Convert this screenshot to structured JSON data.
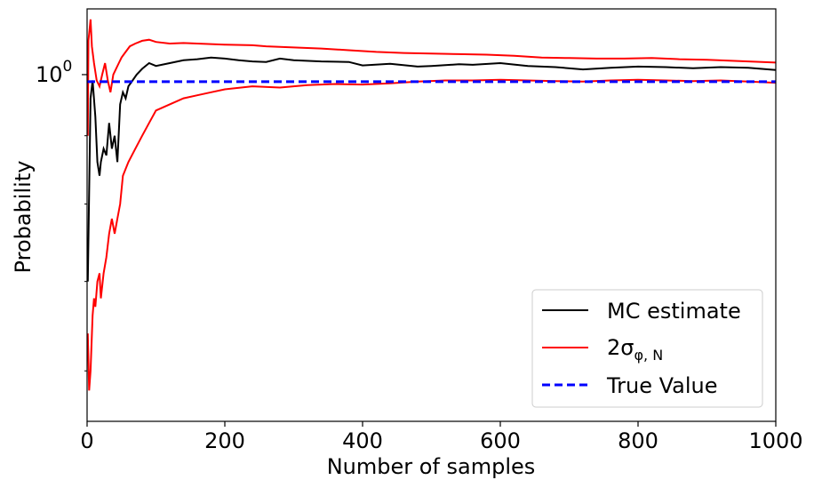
{
  "chart_data": {
    "type": "line",
    "title": "",
    "xlabel": "Number of samples",
    "ylabel": "Probability",
    "xlim": [
      0,
      1000
    ],
    "ylim_log": [
      0.55,
      1.12
    ],
    "yscale": "log",
    "grid": false,
    "legend_placement": "lower-right",
    "x_ticks": [
      {
        "value": 0,
        "label": "0"
      },
      {
        "value": 200,
        "label": "200"
      },
      {
        "value": 400,
        "label": "400"
      },
      {
        "value": 600,
        "label": "600"
      },
      {
        "value": 800,
        "label": "800"
      },
      {
        "value": 1000,
        "label": "1000"
      }
    ],
    "y_major_tick": {
      "value": 1.0,
      "base": "10",
      "exponent": "0"
    },
    "y_minor_ticks": [
      0.6,
      0.7,
      0.8,
      0.9
    ],
    "series": [
      {
        "name": "MC estimate",
        "color": "#000000",
        "dash": "solid",
        "points": [
          [
            1,
            0.7
          ],
          [
            5,
            0.96
          ],
          [
            8,
            0.99
          ],
          [
            12,
            0.93
          ],
          [
            15,
            0.86
          ],
          [
            18,
            0.84
          ],
          [
            20,
            0.86
          ],
          [
            24,
            0.88
          ],
          [
            28,
            0.87
          ],
          [
            32,
            0.92
          ],
          [
            36,
            0.88
          ],
          [
            40,
            0.9
          ],
          [
            44,
            0.86
          ],
          [
            48,
            0.95
          ],
          [
            52,
            0.97
          ],
          [
            56,
            0.96
          ],
          [
            60,
            0.98
          ],
          [
            66,
            0.99
          ],
          [
            72,
            1.0
          ],
          [
            80,
            1.01
          ],
          [
            90,
            1.02
          ],
          [
            100,
            1.015
          ],
          [
            120,
            1.02
          ],
          [
            140,
            1.025
          ],
          [
            160,
            1.027
          ],
          [
            180,
            1.03
          ],
          [
            200,
            1.028
          ],
          [
            220,
            1.025
          ],
          [
            240,
            1.023
          ],
          [
            260,
            1.022
          ],
          [
            280,
            1.028
          ],
          [
            300,
            1.025
          ],
          [
            340,
            1.023
          ],
          [
            380,
            1.022
          ],
          [
            400,
            1.016
          ],
          [
            440,
            1.019
          ],
          [
            480,
            1.014
          ],
          [
            500,
            1.015
          ],
          [
            540,
            1.018
          ],
          [
            560,
            1.017
          ],
          [
            600,
            1.02
          ],
          [
            640,
            1.015
          ],
          [
            680,
            1.013
          ],
          [
            720,
            1.009
          ],
          [
            760,
            1.012
          ],
          [
            800,
            1.014
          ],
          [
            840,
            1.013
          ],
          [
            880,
            1.011
          ],
          [
            920,
            1.013
          ],
          [
            960,
            1.012
          ],
          [
            1000,
            1.008
          ]
        ]
      },
      {
        "name": "2σ_{φ,N}",
        "name_base": "2σ",
        "name_sub": "φ, N",
        "color": "#ff0000",
        "dash": "solid",
        "upper": [
          [
            1,
            0.9
          ],
          [
            2,
            1.06
          ],
          [
            5,
            1.1
          ],
          [
            7,
            1.05
          ],
          [
            10,
            1.02
          ],
          [
            14,
            0.99
          ],
          [
            18,
            0.98
          ],
          [
            22,
            1.0
          ],
          [
            26,
            1.02
          ],
          [
            30,
            0.99
          ],
          [
            34,
            0.97
          ],
          [
            38,
            1.0
          ],
          [
            42,
            1.01
          ],
          [
            46,
            1.02
          ],
          [
            50,
            1.03
          ],
          [
            56,
            1.04
          ],
          [
            62,
            1.05
          ],
          [
            70,
            1.055
          ],
          [
            80,
            1.06
          ],
          [
            90,
            1.062
          ],
          [
            100,
            1.058
          ],
          [
            120,
            1.055
          ],
          [
            140,
            1.056
          ],
          [
            160,
            1.055
          ],
          [
            180,
            1.054
          ],
          [
            200,
            1.053
          ],
          [
            240,
            1.052
          ],
          [
            260,
            1.05
          ],
          [
            300,
            1.048
          ],
          [
            340,
            1.046
          ],
          [
            380,
            1.043
          ],
          [
            420,
            1.04
          ],
          [
            460,
            1.038
          ],
          [
            500,
            1.037
          ],
          [
            540,
            1.036
          ],
          [
            580,
            1.035
          ],
          [
            620,
            1.033
          ],
          [
            660,
            1.03
          ],
          [
            700,
            1.029
          ],
          [
            740,
            1.028
          ],
          [
            780,
            1.028
          ],
          [
            820,
            1.029
          ],
          [
            860,
            1.027
          ],
          [
            900,
            1.026
          ],
          [
            940,
            1.024
          ],
          [
            980,
            1.022
          ],
          [
            1000,
            1.021
          ]
        ],
        "lower": [
          [
            1,
            0.64
          ],
          [
            3,
            0.58
          ],
          [
            5,
            0.6
          ],
          [
            8,
            0.66
          ],
          [
            10,
            0.68
          ],
          [
            12,
            0.67
          ],
          [
            15,
            0.7
          ],
          [
            18,
            0.71
          ],
          [
            20,
            0.68
          ],
          [
            24,
            0.71
          ],
          [
            28,
            0.73
          ],
          [
            32,
            0.76
          ],
          [
            36,
            0.78
          ],
          [
            40,
            0.76
          ],
          [
            44,
            0.78
          ],
          [
            48,
            0.8
          ],
          [
            52,
            0.84
          ],
          [
            56,
            0.85
          ],
          [
            60,
            0.86
          ],
          [
            70,
            0.88
          ],
          [
            80,
            0.9
          ],
          [
            90,
            0.92
          ],
          [
            100,
            0.94
          ],
          [
            120,
            0.95
          ],
          [
            140,
            0.96
          ],
          [
            160,
            0.965
          ],
          [
            180,
            0.97
          ],
          [
            200,
            0.975
          ],
          [
            240,
            0.98
          ],
          [
            280,
            0.978
          ],
          [
            320,
            0.982
          ],
          [
            360,
            0.984
          ],
          [
            400,
            0.983
          ],
          [
            440,
            0.985
          ],
          [
            480,
            0.988
          ],
          [
            520,
            0.99
          ],
          [
            560,
            0.99
          ],
          [
            600,
            0.991
          ],
          [
            640,
            0.99
          ],
          [
            680,
            0.989
          ],
          [
            720,
            0.988
          ],
          [
            760,
            0.99
          ],
          [
            800,
            0.991
          ],
          [
            840,
            0.99
          ],
          [
            880,
            0.989
          ],
          [
            920,
            0.99
          ],
          [
            960,
            0.988
          ],
          [
            1000,
            0.986
          ]
        ]
      },
      {
        "name": "True Value",
        "color": "#0000ff",
        "dash": "dashed",
        "value": 0.988
      }
    ]
  }
}
